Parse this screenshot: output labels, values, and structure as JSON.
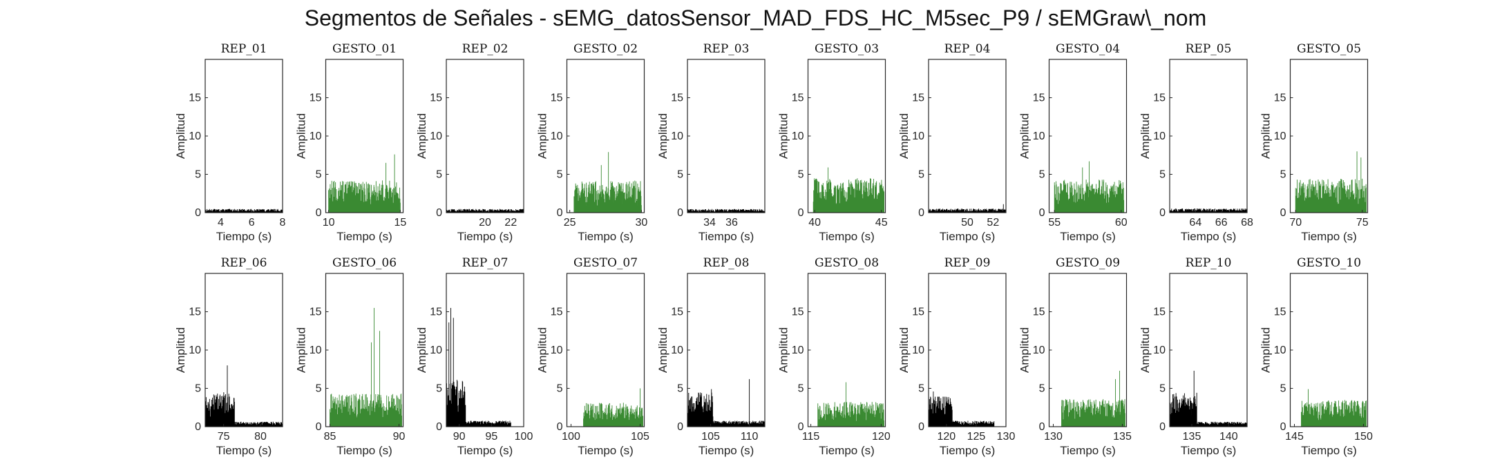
{
  "figure_title": "Segmentos de Señales - sEMG_datosSensor_MAD_FDS_HC_M5sec_P9 / sEMGraw\\_nom",
  "colors": {
    "rep": "#000000",
    "gesto": "#3a8a32",
    "axis": "#262626"
  },
  "chart_data": [
    {
      "type": "area",
      "title": "REP_01",
      "xlabel": "Tiempo (s)",
      "ylabel": "Amplitud",
      "xlim": [
        3,
        8
      ],
      "ylim": [
        0,
        20
      ],
      "xticks": [
        4,
        6,
        8
      ],
      "yticks": [
        0,
        5,
        10,
        15
      ],
      "kind": "rep",
      "series": [
        {
          "start": 3,
          "end": 8,
          "base": 0.4,
          "peak": 0.7,
          "spikes": []
        }
      ]
    },
    {
      "type": "area",
      "title": "GESTO_01",
      "xlabel": "Tiempo (s)",
      "ylabel": "Amplitud",
      "xlim": [
        9.8,
        15.2
      ],
      "ylim": [
        0,
        20
      ],
      "xticks": [
        10,
        15
      ],
      "yticks": [
        0,
        5,
        10,
        15
      ],
      "kind": "gesto",
      "series": [
        {
          "start": 10,
          "end": 15,
          "base": 3.5,
          "peak": 7.6,
          "spikes": [
            [
              14.6,
              7.6
            ],
            [
              14.0,
              6.5
            ]
          ]
        }
      ]
    },
    {
      "type": "area",
      "title": "REP_02",
      "xlabel": "Tiempo (s)",
      "ylabel": "Amplitud",
      "xlim": [
        17,
        23
      ],
      "ylim": [
        0,
        20
      ],
      "xticks": [
        20,
        22
      ],
      "yticks": [
        0,
        5,
        10,
        15
      ],
      "kind": "rep",
      "series": [
        {
          "start": 17,
          "end": 23,
          "base": 0.4,
          "peak": 0.7,
          "spikes": []
        }
      ]
    },
    {
      "type": "area",
      "title": "GESTO_02",
      "xlabel": "Tiempo (s)",
      "ylabel": "Amplitud",
      "xlim": [
        24.8,
        30.2
      ],
      "ylim": [
        0,
        20
      ],
      "xticks": [
        25,
        30
      ],
      "yticks": [
        0,
        5,
        10,
        15
      ],
      "kind": "gesto",
      "series": [
        {
          "start": 25.3,
          "end": 30,
          "base": 3.5,
          "peak": 7.9,
          "spikes": [
            [
              27.7,
              7.9
            ],
            [
              27.2,
              6.2
            ]
          ]
        }
      ]
    },
    {
      "type": "area",
      "title": "REP_03",
      "xlabel": "Tiempo (s)",
      "ylabel": "Amplitud",
      "xlim": [
        32,
        39
      ],
      "ylim": [
        0,
        20
      ],
      "xticks": [
        34,
        36
      ],
      "yticks": [
        0,
        5,
        10,
        15
      ],
      "kind": "rep",
      "series": [
        {
          "start": 32,
          "end": 39,
          "base": 0.4,
          "peak": 0.7,
          "spikes": []
        }
      ]
    },
    {
      "type": "area",
      "title": "GESTO_03",
      "xlabel": "Tiempo (s)",
      "ylabel": "Amplitud",
      "xlim": [
        39.5,
        45.3
      ],
      "ylim": [
        0,
        20
      ],
      "xticks": [
        40,
        45
      ],
      "yticks": [
        0,
        5,
        10,
        15
      ],
      "kind": "gesto",
      "series": [
        {
          "start": 39.9,
          "end": 45.2,
          "base": 3.8,
          "peak": 5.9,
          "spikes": [
            [
              41.0,
              5.9
            ]
          ]
        }
      ]
    },
    {
      "type": "area",
      "title": "REP_04",
      "xlabel": "Tiempo (s)",
      "ylabel": "Amplitud",
      "xlim": [
        47,
        53
      ],
      "ylim": [
        0,
        20
      ],
      "xticks": [
        50,
        52
      ],
      "yticks": [
        0,
        5,
        10,
        15
      ],
      "kind": "rep",
      "series": [
        {
          "start": 47,
          "end": 53,
          "base": 0.45,
          "peak": 1.1,
          "spikes": [
            [
              52.8,
              1.1
            ]
          ]
        }
      ]
    },
    {
      "type": "area",
      "title": "GESTO_04",
      "xlabel": "Tiempo (s)",
      "ylabel": "Amplitud",
      "xlim": [
        54.6,
        60.4
      ],
      "ylim": [
        0,
        20
      ],
      "xticks": [
        55,
        60
      ],
      "yticks": [
        0,
        5,
        10,
        15
      ],
      "kind": "gesto",
      "series": [
        {
          "start": 55,
          "end": 60.2,
          "base": 3.6,
          "peak": 6.7,
          "spikes": [
            [
              57.6,
              6.7
            ],
            [
              57.1,
              5.9
            ]
          ]
        }
      ]
    },
    {
      "type": "area",
      "title": "REP_05",
      "xlabel": "Tiempo (s)",
      "ylabel": "Amplitud",
      "xlim": [
        62,
        68
      ],
      "ylim": [
        0,
        20
      ],
      "xticks": [
        64,
        66,
        68
      ],
      "yticks": [
        0,
        5,
        10,
        15
      ],
      "kind": "rep",
      "series": [
        {
          "start": 62,
          "end": 68,
          "base": 0.45,
          "peak": 0.8,
          "spikes": []
        }
      ]
    },
    {
      "type": "area",
      "title": "GESTO_05",
      "xlabel": "Tiempo (s)",
      "ylabel": "Amplitud",
      "xlim": [
        69.6,
        75.4
      ],
      "ylim": [
        0,
        20
      ],
      "xticks": [
        70,
        75
      ],
      "yticks": [
        0,
        5,
        10,
        15
      ],
      "kind": "gesto",
      "series": [
        {
          "start": 70,
          "end": 75.3,
          "base": 3.7,
          "peak": 8.0,
          "spikes": [
            [
              74.6,
              8.0
            ],
            [
              74.9,
              7.2
            ]
          ]
        }
      ]
    },
    {
      "type": "area",
      "title": "REP_06",
      "xlabel": "Tiempo (s)",
      "ylabel": "Amplitud",
      "xlim": [
        72.5,
        83
      ],
      "ylim": [
        0,
        20
      ],
      "xticks": [
        75,
        80
      ],
      "yticks": [
        0,
        5,
        10,
        15
      ],
      "kind": "rep",
      "series": [
        {
          "start": 72.5,
          "end": 83,
          "base": 0.5,
          "peak": 8.0,
          "spikes": [
            [
              75.5,
              8.0
            ]
          ],
          "burst": [
            72.5,
            76.5,
            3.6
          ]
        }
      ]
    },
    {
      "type": "area",
      "title": "GESTO_06",
      "xlabel": "Tiempo (s)",
      "ylabel": "Amplitud",
      "xlim": [
        84.7,
        90.3
      ],
      "ylim": [
        0,
        20
      ],
      "xticks": [
        85,
        90
      ],
      "yticks": [
        0,
        5,
        10,
        15
      ],
      "kind": "gesto",
      "series": [
        {
          "start": 85,
          "end": 90.2,
          "base": 3.6,
          "peak": 15.5,
          "spikes": [
            [
              88.2,
              15.5
            ],
            [
              88.6,
              12.5
            ],
            [
              88.0,
              11.0
            ]
          ]
        }
      ]
    },
    {
      "type": "area",
      "title": "REP_07",
      "xlabel": "Tiempo (s)",
      "ylabel": "Amplitud",
      "xlim": [
        88,
        100
      ],
      "ylim": [
        0,
        20
      ],
      "xticks": [
        90,
        95,
        100
      ],
      "yticks": [
        0,
        5,
        10,
        15
      ],
      "kind": "rep",
      "series": [
        {
          "start": 88,
          "end": 98,
          "base": 0.6,
          "peak": 15.5,
          "spikes": [
            [
              88.7,
              15.5
            ],
            [
              89.1,
              14.2
            ],
            [
              88.4,
              13.6
            ]
          ],
          "burst": [
            88,
            91,
            5.0
          ]
        }
      ]
    },
    {
      "type": "area",
      "title": "GESTO_07",
      "xlabel": "Tiempo (s)",
      "ylabel": "Amplitud",
      "xlim": [
        99.7,
        105.3
      ],
      "ylim": [
        0,
        20
      ],
      "xticks": [
        100,
        105
      ],
      "yticks": [
        0,
        5,
        10,
        15
      ],
      "kind": "gesto",
      "series": [
        {
          "start": 100.9,
          "end": 105.2,
          "base": 2.6,
          "peak": 5.0,
          "spikes": [
            [
              105.0,
              5.0
            ]
          ]
        }
      ]
    },
    {
      "type": "area",
      "title": "REP_08",
      "xlabel": "Tiempo (s)",
      "ylabel": "Amplitud",
      "xlim": [
        102,
        112
      ],
      "ylim": [
        0,
        20
      ],
      "xticks": [
        105,
        110
      ],
      "yticks": [
        0,
        5,
        10,
        15
      ],
      "kind": "rep",
      "series": [
        {
          "start": 102,
          "end": 112,
          "base": 0.6,
          "peak": 6.2,
          "spikes": [
            [
              110.0,
              6.2
            ],
            [
              105.1,
              4.9
            ]
          ],
          "burst": [
            102,
            105.3,
            3.6
          ]
        }
      ]
    },
    {
      "type": "area",
      "title": "GESTO_08",
      "xlabel": "Tiempo (s)",
      "ylabel": "Amplitud",
      "xlim": [
        114.8,
        120.3
      ],
      "ylim": [
        0,
        20
      ],
      "xticks": [
        115,
        120
      ],
      "yticks": [
        0,
        5,
        10,
        15
      ],
      "kind": "gesto",
      "series": [
        {
          "start": 115.5,
          "end": 120.2,
          "base": 2.7,
          "peak": 5.8,
          "spikes": [
            [
              117.5,
              5.8
            ]
          ]
        }
      ]
    },
    {
      "type": "area",
      "title": "REP_09",
      "xlabel": "Tiempo (s)",
      "ylabel": "Amplitud",
      "xlim": [
        117,
        130
      ],
      "ylim": [
        0,
        20
      ],
      "xticks": [
        120,
        125,
        130
      ],
      "yticks": [
        0,
        5,
        10,
        15
      ],
      "kind": "rep",
      "series": [
        {
          "start": 117,
          "end": 128,
          "base": 0.6,
          "peak": 4.6,
          "spikes": [
            [
              117.8,
              4.6
            ]
          ],
          "burst": [
            117,
            121,
            3.4
          ]
        }
      ]
    },
    {
      "type": "area",
      "title": "GESTO_09",
      "xlabel": "Tiempo (s)",
      "ylabel": "Amplitud",
      "xlim": [
        129.7,
        135.3
      ],
      "ylim": [
        0,
        20
      ],
      "xticks": [
        130,
        135
      ],
      "yticks": [
        0,
        5,
        10,
        15
      ],
      "kind": "gesto",
      "series": [
        {
          "start": 130.6,
          "end": 135.2,
          "base": 3.0,
          "peak": 7.3,
          "spikes": [
            [
              134.8,
              7.3
            ],
            [
              134.5,
              6.2
            ]
          ]
        }
      ]
    },
    {
      "type": "area",
      "title": "REP_10",
      "xlabel": "Tiempo (s)",
      "ylabel": "Amplitud",
      "xlim": [
        132,
        142.5
      ],
      "ylim": [
        0,
        20
      ],
      "xticks": [
        135,
        140
      ],
      "yticks": [
        0,
        5,
        10,
        15
      ],
      "kind": "rep",
      "series": [
        {
          "start": 132,
          "end": 142.5,
          "base": 0.5,
          "peak": 7.3,
          "spikes": [
            [
              135.3,
              7.3
            ]
          ],
          "burst": [
            132,
            135.7,
            3.6
          ]
        }
      ]
    },
    {
      "type": "area",
      "title": "GESTO_10",
      "xlabel": "Tiempo (s)",
      "ylabel": "Amplitud",
      "xlim": [
        144.7,
        150.3
      ],
      "ylim": [
        0,
        20
      ],
      "xticks": [
        145,
        150
      ],
      "yticks": [
        0,
        5,
        10,
        15
      ],
      "kind": "gesto",
      "series": [
        {
          "start": 145.5,
          "end": 150.2,
          "base": 2.9,
          "peak": 4.9,
          "spikes": [
            [
              146.0,
              4.9
            ]
          ]
        }
      ]
    }
  ]
}
